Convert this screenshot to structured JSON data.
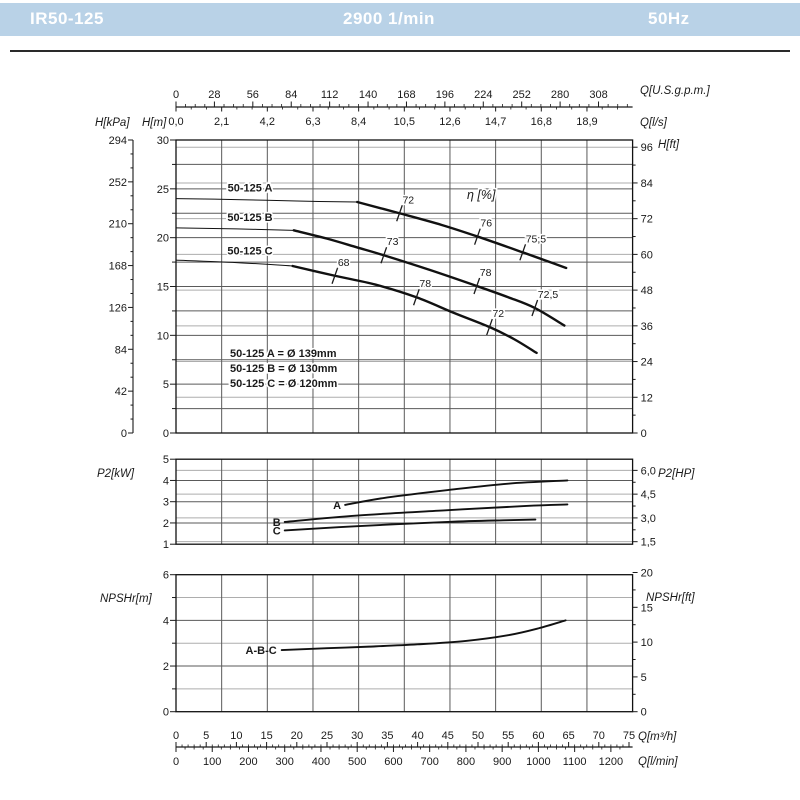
{
  "header": {
    "model": "IR50-125",
    "speed": "2900 1/min",
    "frequency": "50Hz"
  },
  "colors": {
    "header_bg": "#b9d2e7",
    "header_text": "#ffffff",
    "grid_dark": "#5a5a5a",
    "grid_light": "#adadad",
    "axis": "#1a1a1a",
    "curve": "#111111"
  },
  "chart_data": {
    "type": "line",
    "x_axis_gpm": {
      "unit": "Q[U.S.g.p.m.]",
      "tick_step": 28,
      "values": [
        0,
        28,
        56,
        84,
        112,
        140,
        168,
        196,
        224,
        252,
        280,
        308
      ],
      "labels": [
        "0",
        "28",
        "56",
        "84",
        "112",
        "140",
        "168",
        "196",
        "224",
        "252",
        "280",
        "308"
      ]
    },
    "x_axis_ls": {
      "unit": "Q[l/s]",
      "tick_step": 2.1,
      "values": [
        0,
        2.1,
        4.2,
        6.3,
        8.4,
        10.5,
        12.6,
        14.7,
        16.8,
        18.9
      ],
      "labels": [
        "0,0",
        "2,1",
        "4,2",
        "6,3",
        "8,4",
        "10,5",
        "12,6",
        "14,7",
        "16,8",
        "18,9"
      ]
    },
    "x_axis_m3h": {
      "unit": "Q[m³/h]",
      "min": 0,
      "max": 75,
      "tick_step": 5,
      "values": [
        0,
        5,
        10,
        15,
        20,
        25,
        30,
        35,
        40,
        45,
        50,
        55,
        60,
        65,
        70,
        75
      ],
      "labels": [
        "0",
        "5",
        "10",
        "15",
        "20",
        "25",
        "30",
        "35",
        "40",
        "45",
        "50",
        "55",
        "60",
        "65",
        "70",
        "75"
      ]
    },
    "x_axis_lmin": {
      "unit": "Q[l/min]",
      "tick_step": 100,
      "values": [
        0,
        100,
        200,
        300,
        400,
        500,
        600,
        700,
        800,
        900,
        1000,
        1100,
        1200
      ],
      "labels": [
        "0",
        "100",
        "200",
        "300",
        "400",
        "500",
        "600",
        "700",
        "800",
        "900",
        "1000",
        "1100",
        "1200"
      ]
    },
    "head_chart": {
      "y_axis_m": {
        "unit": "H[m]",
        "min": 0,
        "max": 30,
        "label_step": 5,
        "grid_step": 2.5,
        "labels": [
          "30",
          "25",
          "20",
          "15",
          "10",
          "5",
          "0"
        ]
      },
      "y_axis_kpa": {
        "unit": "H[kPa]",
        "label_step": 42,
        "minor_step": 14,
        "labels": [
          "294",
          "252",
          "210",
          "168",
          "126",
          "84",
          "42",
          "0"
        ]
      },
      "y_axis_ft": {
        "unit": "H[ft]",
        "label_step": 12,
        "minor_step": 6,
        "labels": [
          "96",
          "84",
          "72",
          "60",
          "48",
          "36",
          "24",
          "12",
          "0"
        ]
      },
      "eta_label": "η [%]",
      "curves": [
        {
          "name": "50-125 A",
          "thin_until": 30,
          "points": [
            [
              0,
              24.0
            ],
            [
              10,
              23.9
            ],
            [
              20,
              23.75
            ],
            [
              30,
              23.65
            ],
            [
              37,
              22.5
            ],
            [
              44,
              21.3
            ],
            [
              50,
              20.1
            ],
            [
              57.4,
              18.5
            ],
            [
              61,
              17.7
            ],
            [
              64.6,
              16.9
            ]
          ],
          "eta_marks": [
            {
              "label": "72",
              "q": 37,
              "h": 22.5
            },
            {
              "label": "76",
              "q": 49.9,
              "h": 20.1
            },
            {
              "label": "75,5",
              "q": 57.4,
              "h": 18.5
            }
          ]
        },
        {
          "name": "50-125 B",
          "thin_until": 19.5,
          "points": [
            [
              0,
              21.0
            ],
            [
              10,
              20.9
            ],
            [
              19.5,
              20.75
            ],
            [
              25,
              19.9
            ],
            [
              30,
              19.0
            ],
            [
              34.4,
              18.2
            ],
            [
              42,
              16.7
            ],
            [
              49.8,
              15.05
            ],
            [
              55,
              13.9
            ],
            [
              59.4,
              12.8
            ],
            [
              64.3,
              11.0
            ]
          ],
          "eta_marks": [
            {
              "label": "73",
              "q": 34.4,
              "h": 18.2
            },
            {
              "label": "78",
              "q": 49.8,
              "h": 15.05
            },
            {
              "label": "72,5",
              "q": 59.4,
              "h": 12.8
            }
          ]
        },
        {
          "name": "50-125 C",
          "thin_until": 19.3,
          "points": [
            [
              0,
              17.7
            ],
            [
              10,
              17.45
            ],
            [
              19.3,
              17.1
            ],
            [
              26.3,
              16.1
            ],
            [
              33,
              15.2
            ],
            [
              39.8,
              13.9
            ],
            [
              46,
              12.3
            ],
            [
              51.9,
              10.85
            ],
            [
              56,
              9.6
            ],
            [
              59.7,
              8.2
            ]
          ],
          "eta_marks": [
            {
              "label": "68",
              "q": 26.3,
              "h": 16.1
            },
            {
              "label": "78",
              "q": 39.8,
              "h": 13.9
            },
            {
              "label": "72",
              "q": 51.9,
              "h": 10.85
            }
          ]
        }
      ],
      "impeller_legend": [
        "50-125 A = Ø 139mm",
        "50-125 B = Ø 130mm",
        "50-125 C = Ø 120mm"
      ]
    },
    "p2_chart": {
      "y_axis_kw": {
        "unit": "P2[kW]",
        "min": 1,
        "max": 5,
        "labels": [
          "5",
          "4",
          "3",
          "2",
          "1"
        ]
      },
      "y_axis_hp": {
        "unit": "P2[HP]",
        "values": [
          6,
          4.5,
          3,
          1.5
        ],
        "minor_values": [
          5.25,
          3.75,
          2.25
        ],
        "labels": [
          "6,0",
          "4,5",
          "3,0",
          "1,5"
        ]
      },
      "curves": [
        {
          "name": "A",
          "points": [
            [
              28,
              2.85
            ],
            [
              35,
              3.2
            ],
            [
              45,
              3.55
            ],
            [
              55,
              3.85
            ],
            [
              64.8,
              4.0
            ]
          ]
        },
        {
          "name": "B",
          "points": [
            [
              18,
              2.05
            ],
            [
              30,
              2.35
            ],
            [
              45,
              2.6
            ],
            [
              58,
              2.8
            ],
            [
              64.8,
              2.87
            ]
          ]
        },
        {
          "name": "C",
          "points": [
            [
              18,
              1.65
            ],
            [
              30,
              1.85
            ],
            [
              45,
              2.05
            ],
            [
              55,
              2.13
            ],
            [
              59.5,
              2.16
            ]
          ]
        }
      ]
    },
    "npsh_chart": {
      "y_axis_m": {
        "unit": "NPSHr[m]",
        "min": 0,
        "max": 6,
        "label_step": 2,
        "labels": [
          "6",
          "4",
          "2",
          "0"
        ]
      },
      "y_axis_ft": {
        "unit": "NPSHr[ft]",
        "values": [
          20,
          15,
          10,
          5,
          0
        ],
        "minor_values": [
          17.5,
          12.5,
          7.5,
          2.5
        ],
        "labels": [
          "20",
          "15",
          "10",
          "5",
          "0"
        ]
      },
      "curves": [
        {
          "name": "A-B-C",
          "points": [
            [
              17.5,
              2.7
            ],
            [
              25,
              2.78
            ],
            [
              32,
              2.85
            ],
            [
              40,
              2.95
            ],
            [
              48,
              3.1
            ],
            [
              55,
              3.35
            ],
            [
              60,
              3.65
            ],
            [
              64.5,
              4.0
            ]
          ]
        }
      ]
    }
  }
}
